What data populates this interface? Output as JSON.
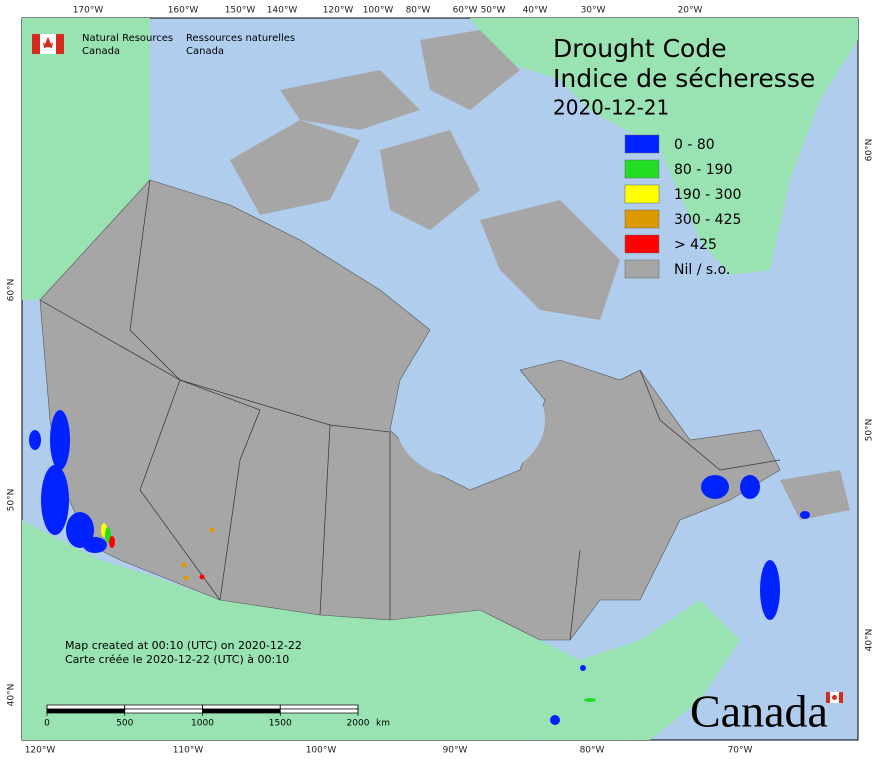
{
  "header": {
    "en": [
      "Natural Resources",
      "Canada"
    ],
    "fr": [
      "Ressources naturelles",
      "Canada"
    ]
  },
  "title": {
    "en": "Drought Code",
    "fr": "Indice de sécheresse",
    "date": "2020-12-21"
  },
  "legend": [
    {
      "label": "0 - 80",
      "color": "#0022ff"
    },
    {
      "label": "80 - 190",
      "color": "#22dd22"
    },
    {
      "label": "190 - 300",
      "color": "#ffff00"
    },
    {
      "label": "300 - 425",
      "color": "#dd9900"
    },
    {
      "label": "> 425",
      "color": "#ff0000"
    },
    {
      "label": "Nil / s.o.",
      "color": "#a6a6a6"
    }
  ],
  "notes": [
    "Map created at 00:10 (UTC) on 2020-12-22",
    "Carte créée le 2020-12-22 (UTC) à 00:10"
  ],
  "scale_bar": {
    "ticks": [
      0,
      500,
      1000,
      1500,
      2000
    ],
    "unit": "km"
  },
  "graticule": {
    "top": [
      "170°W",
      "160°W",
      "150°W",
      "140°W",
      "120°W",
      "100°W",
      "80°W",
      "60°W",
      "50°W",
      "40°W",
      "30°W",
      "20°W"
    ],
    "bottom": [
      "120°W",
      "110°W",
      "100°W",
      "90°W",
      "80°W",
      "70°W"
    ],
    "left": [
      "60°N",
      "50°N",
      "40°N"
    ],
    "right": [
      "60°N",
      "50°N",
      "40°N"
    ]
  },
  "wordmark": "Canada"
}
